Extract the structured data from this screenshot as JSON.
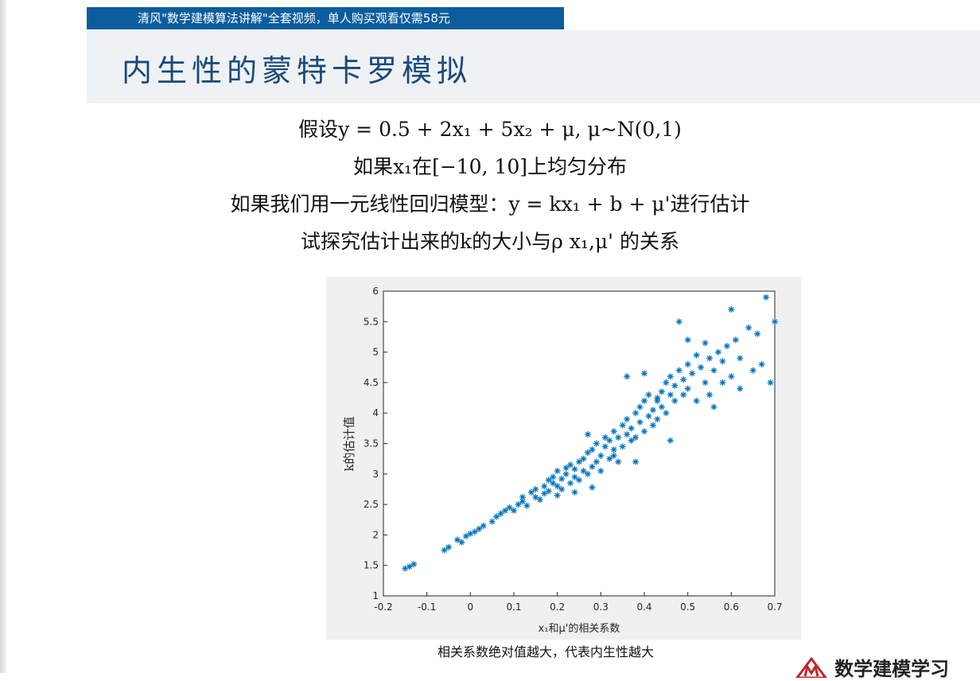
{
  "promo_text": "清风\"数学建模算法讲解\"全套视频，单人购买观看仅需58元",
  "title": "内生性的蒙特卡罗模拟",
  "lines": {
    "l1": "假设y = 0.5 + 2x₁ + 5x₂ + μ, μ~N(0,1)",
    "l2": "如果x₁在[−10, 10]上均匀分布",
    "l3": "如果我们用一元线性回归模型：y = kx₁ + b + μ'进行估计",
    "l4": "试探究估计出来的k的大小与ρ x₁,μ' 的关系"
  },
  "caption": "相关系数绝对值越大，代表内生性越大",
  "logo_text": "数学建模学习",
  "colors": {
    "promo_bg": "#0b5d9e",
    "title_color": "#1a4a7a",
    "marker": "#0072bd"
  },
  "chart_data": {
    "type": "scatter",
    "marker": "*",
    "xlabel": "x₁和μ'的相关系数",
    "ylabel": "k的估计值",
    "xlim": [
      -0.2,
      0.7
    ],
    "ylim": [
      1,
      6
    ],
    "xticks": [
      "-0.2",
      "-0.1",
      "0",
      "0.1",
      "0.2",
      "0.3",
      "0.4",
      "0.5",
      "0.6",
      "0.7"
    ],
    "yticks": [
      "1",
      "1.5",
      "2",
      "2.5",
      "3",
      "3.5",
      "4",
      "4.5",
      "5",
      "5.5",
      "6"
    ],
    "points": [
      [
        -0.15,
        1.45
      ],
      [
        -0.14,
        1.48
      ],
      [
        -0.13,
        1.52
      ],
      [
        -0.06,
        1.75
      ],
      [
        -0.05,
        1.8
      ],
      [
        -0.03,
        1.92
      ],
      [
        -0.02,
        1.88
      ],
      [
        -0.01,
        1.98
      ],
      [
        0.0,
        2.02
      ],
      [
        0.01,
        2.05
      ],
      [
        0.02,
        2.1
      ],
      [
        0.03,
        2.15
      ],
      [
        0.05,
        2.22
      ],
      [
        0.06,
        2.3
      ],
      [
        0.07,
        2.35
      ],
      [
        0.08,
        2.4
      ],
      [
        0.09,
        2.45
      ],
      [
        0.1,
        2.4
      ],
      [
        0.11,
        2.5
      ],
      [
        0.12,
        2.55
      ],
      [
        0.12,
        2.62
      ],
      [
        0.13,
        2.48
      ],
      [
        0.14,
        2.7
      ],
      [
        0.15,
        2.62
      ],
      [
        0.15,
        2.75
      ],
      [
        0.16,
        2.58
      ],
      [
        0.17,
        2.8
      ],
      [
        0.17,
        2.68
      ],
      [
        0.18,
        2.9
      ],
      [
        0.18,
        2.72
      ],
      [
        0.19,
        2.85
      ],
      [
        0.19,
        2.95
      ],
      [
        0.2,
        2.8
      ],
      [
        0.2,
        3.05
      ],
      [
        0.21,
        2.75
      ],
      [
        0.21,
        2.92
      ],
      [
        0.22,
        3.0
      ],
      [
        0.22,
        3.1
      ],
      [
        0.23,
        2.85
      ],
      [
        0.23,
        3.15
      ],
      [
        0.24,
        2.95
      ],
      [
        0.24,
        3.08
      ],
      [
        0.25,
        3.2
      ],
      [
        0.25,
        2.9
      ],
      [
        0.26,
        3.25
      ],
      [
        0.26,
        3.05
      ],
      [
        0.27,
        3.35
      ],
      [
        0.27,
        3.0
      ],
      [
        0.28,
        3.12
      ],
      [
        0.28,
        3.4
      ],
      [
        0.28,
        2.78
      ],
      [
        0.29,
        3.2
      ],
      [
        0.29,
        3.5
      ],
      [
        0.3,
        3.3
      ],
      [
        0.3,
        3.05
      ],
      [
        0.31,
        3.45
      ],
      [
        0.31,
        3.6
      ],
      [
        0.32,
        3.25
      ],
      [
        0.32,
        3.55
      ],
      [
        0.33,
        3.4
      ],
      [
        0.33,
        3.7
      ],
      [
        0.34,
        3.2
      ],
      [
        0.34,
        3.6
      ],
      [
        0.35,
        3.8
      ],
      [
        0.35,
        3.45
      ],
      [
        0.36,
        3.65
      ],
      [
        0.36,
        3.9
      ],
      [
        0.37,
        3.55
      ],
      [
        0.37,
        3.75
      ],
      [
        0.38,
        4.0
      ],
      [
        0.38,
        3.6
      ],
      [
        0.39,
        3.85
      ],
      [
        0.39,
        4.1
      ],
      [
        0.4,
        3.7
      ],
      [
        0.4,
        4.2
      ],
      [
        0.41,
        3.95
      ],
      [
        0.41,
        4.3
      ],
      [
        0.42,
        3.8
      ],
      [
        0.42,
        4.05
      ],
      [
        0.43,
        4.2
      ],
      [
        0.43,
        3.9
      ],
      [
        0.44,
        4.35
      ],
      [
        0.44,
        4.1
      ],
      [
        0.45,
        4.5
      ],
      [
        0.45,
        4.0
      ],
      [
        0.46,
        4.3
      ],
      [
        0.46,
        4.6
      ],
      [
        0.47,
        4.2
      ],
      [
        0.47,
        4.45
      ],
      [
        0.48,
        4.7
      ],
      [
        0.49,
        4.3
      ],
      [
        0.49,
        4.55
      ],
      [
        0.5,
        4.8
      ],
      [
        0.5,
        4.4
      ],
      [
        0.51,
        4.65
      ],
      [
        0.52,
        4.95
      ],
      [
        0.52,
        4.2
      ],
      [
        0.53,
        4.75
      ],
      [
        0.54,
        4.5
      ],
      [
        0.55,
        4.9
      ],
      [
        0.55,
        4.3
      ],
      [
        0.56,
        4.7
      ],
      [
        0.57,
        5.0
      ],
      [
        0.58,
        4.5
      ],
      [
        0.58,
        4.85
      ],
      [
        0.59,
        5.1
      ],
      [
        0.6,
        4.6
      ],
      [
        0.61,
        5.2
      ],
      [
        0.62,
        4.9
      ],
      [
        0.64,
        5.4
      ],
      [
        0.65,
        4.7
      ],
      [
        0.66,
        5.3
      ],
      [
        0.67,
        4.8
      ],
      [
        0.68,
        5.9
      ],
      [
        0.69,
        4.5
      ],
      [
        0.7,
        5.5
      ],
      [
        0.46,
        3.55
      ],
      [
        0.38,
        3.2
      ],
      [
        0.33,
        3.3
      ],
      [
        0.27,
        3.65
      ],
      [
        0.24,
        2.7
      ],
      [
        0.2,
        2.65
      ],
      [
        0.36,
        4.6
      ],
      [
        0.4,
        4.65
      ],
      [
        0.43,
        4.25
      ],
      [
        0.5,
        5.2
      ],
      [
        0.54,
        5.15
      ],
      [
        0.48,
        5.5
      ],
      [
        0.6,
        5.7
      ],
      [
        0.56,
        4.1
      ],
      [
        0.62,
        4.4
      ]
    ]
  }
}
